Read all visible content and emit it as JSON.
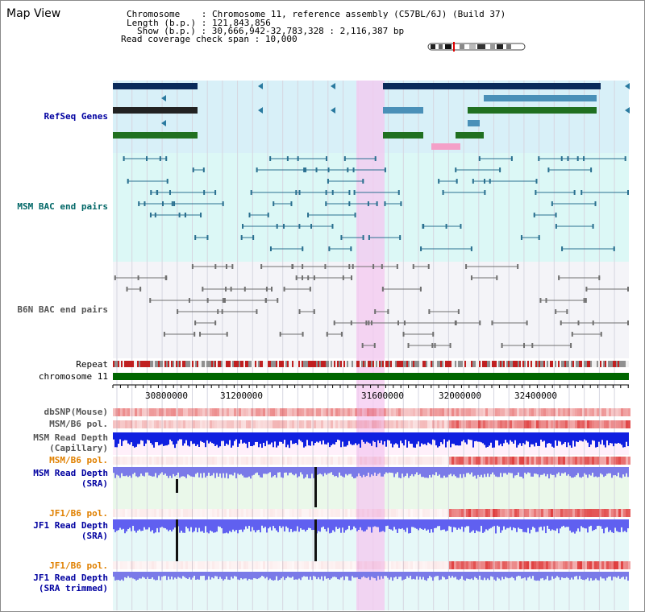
{
  "view": {
    "title": "Map View",
    "info": {
      "chromosome_label": "Chromosome",
      "chromosome_value": "Chromosome 11, reference assembly (C57BL/6J) (Build 37)",
      "length_label": "Length (b.p.)",
      "length_value": "121,843,856",
      "show_label": "Show (b.p.)",
      "show_value": "30,666,942-32,783,328 : 2,116,387 bp",
      "span_label": "Read coverage check span",
      "span_value": "10,000"
    }
  },
  "tracks": {
    "refseq": "RefSeq Genes",
    "msm_bac": "MSM BAC end pairs",
    "b6n_bac": "B6N BAC end pairs",
    "repeat": "Repeat",
    "chromosome": "chromosome 11",
    "dbsnp": "dbSNP(Mouse)",
    "msm_pol": "MSM/B6 pol.",
    "msm_depth_cap": "MSM Read Depth\n(Capillary)",
    "msm_pol2": "MSM/B6 pol.",
    "msm_depth_sra": "MSM Read Depth\n(SRA)",
    "jf1_pol": "JF1/B6 pol.",
    "jf1_depth_sra": "JF1 Read Depth\n(SRA)",
    "jf1_pol2": "JF1/B6 pol.",
    "jf1_depth_trim": "JF1 Read Depth\n(SRA trimmed)"
  },
  "ruler": {
    "ticks": [
      "30800000",
      "31200000",
      "31600000",
      "32000000",
      "32400000"
    ]
  },
  "colors": {
    "label_blue": "#0000a0",
    "label_teal": "#006666",
    "label_gray": "#555555",
    "label_orange": "#e08000",
    "highlight": "#f4c8f0"
  }
}
